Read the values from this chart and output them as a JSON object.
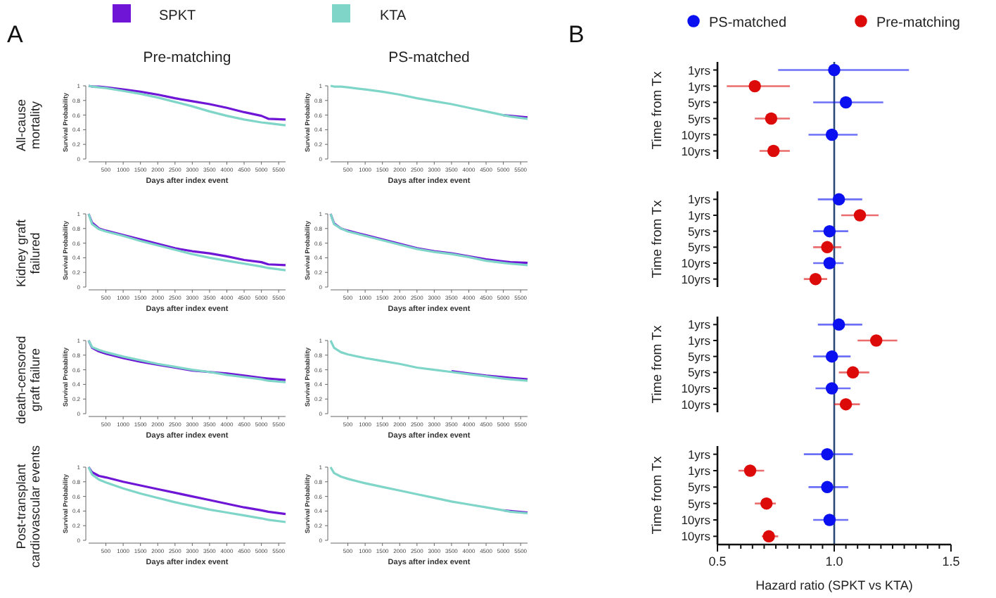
{
  "chart_data": [
    {
      "type": "line",
      "title": "Pre-matching",
      "annotations": [
        "A",
        "All-cause\nmortality"
      ],
      "xlabel": "Days after index event",
      "ylabel": "Survival Probability",
      "legend": "top",
      "xlim": [
        0,
        5700
      ],
      "xticks": [
        500,
        1000,
        1500,
        2000,
        2500,
        3000,
        3500,
        4000,
        4500,
        5000,
        5500
      ],
      "ylim": [
        0,
        1
      ],
      "yticks": [
        0,
        0.2,
        0.4,
        0.6,
        0.8,
        1
      ],
      "x": [
        0,
        100,
        300,
        500,
        1000,
        1500,
        2000,
        2500,
        3000,
        3500,
        4000,
        4500,
        5000,
        5200,
        5700
      ],
      "series": [
        {
          "name": "SPKT",
          "color": "#6f16d6",
          "values": [
            1,
            0.99,
            0.99,
            0.98,
            0.95,
            0.92,
            0.88,
            0.83,
            0.79,
            0.75,
            0.7,
            0.64,
            0.59,
            0.55,
            0.54
          ]
        },
        {
          "name": "KTA",
          "color": "#7fd6c8",
          "values": [
            1,
            0.99,
            0.98,
            0.97,
            0.93,
            0.89,
            0.84,
            0.78,
            0.72,
            0.65,
            0.59,
            0.54,
            0.5,
            0.49,
            0.46
          ]
        }
      ]
    },
    {
      "type": "line",
      "title": "PS-matched",
      "xlabel": "Days after index event",
      "ylabel": "Survival Probability",
      "xlim": [
        0,
        5700
      ],
      "xticks": [
        500,
        1000,
        1500,
        2000,
        2500,
        3000,
        3500,
        4000,
        4500,
        5000,
        5500
      ],
      "ylim": [
        0,
        1
      ],
      "yticks": [
        0,
        0.2,
        0.4,
        0.6,
        0.8,
        1
      ],
      "x": [
        0,
        100,
        300,
        500,
        1000,
        1500,
        2000,
        2500,
        3000,
        3500,
        4000,
        4500,
        5000,
        5200,
        5700
      ],
      "series": [
        {
          "color": "#6f16d6",
          "values": [
            null,
            null,
            null,
            null,
            null,
            null,
            null,
            null,
            null,
            null,
            null,
            null,
            0.6,
            0.59,
            0.57
          ]
        },
        {
          "color": "#7fd6c8",
          "values": [
            1,
            0.99,
            0.99,
            0.98,
            0.95,
            0.92,
            0.88,
            0.83,
            0.79,
            0.75,
            0.7,
            0.65,
            0.6,
            0.58,
            0.55
          ]
        }
      ]
    },
    {
      "type": "line",
      "annotations": [
        "Kidney graft\nfailured"
      ],
      "xlabel": "Days after index event",
      "ylabel": "Survival Probability",
      "xlim": [
        0,
        5700
      ],
      "xticks": [
        500,
        1000,
        1500,
        2000,
        2500,
        3000,
        3500,
        4000,
        4500,
        5000,
        5500
      ],
      "ylim": [
        0,
        1
      ],
      "yticks": [
        0,
        0.2,
        0.4,
        0.6,
        0.8,
        1
      ],
      "x": [
        0,
        100,
        300,
        500,
        1000,
        1500,
        2000,
        2500,
        3000,
        3500,
        4000,
        4500,
        5000,
        5200,
        5700
      ],
      "series": [
        {
          "color": "#6f16d6",
          "values": [
            1,
            0.88,
            0.8,
            0.77,
            0.71,
            0.65,
            0.59,
            0.53,
            0.49,
            0.46,
            0.42,
            0.37,
            0.34,
            0.31,
            0.3
          ]
        },
        {
          "color": "#7fd6c8",
          "values": [
            1,
            0.86,
            0.79,
            0.76,
            0.7,
            0.63,
            0.57,
            0.51,
            0.45,
            0.4,
            0.36,
            0.32,
            0.28,
            0.26,
            0.23
          ]
        }
      ]
    },
    {
      "type": "line",
      "xlabel": "Days after index event",
      "ylabel": "Survival Probability",
      "xlim": [
        0,
        5700
      ],
      "xticks": [
        500,
        1000,
        1500,
        2000,
        2500,
        3000,
        3500,
        4000,
        4500,
        5000,
        5500
      ],
      "ylim": [
        0,
        1
      ],
      "yticks": [
        0,
        0.2,
        0.4,
        0.6,
        0.8,
        1
      ],
      "x": [
        0,
        100,
        300,
        500,
        1000,
        1500,
        2000,
        2500,
        3000,
        3500,
        4000,
        4500,
        5000,
        5200,
        5700
      ],
      "series": [
        {
          "color": "#6f16d6",
          "values": [
            1,
            0.87,
            0.8,
            0.77,
            0.71,
            0.65,
            0.59,
            0.53,
            0.49,
            0.46,
            0.42,
            0.38,
            0.35,
            0.34,
            0.33
          ]
        },
        {
          "color": "#7fd6c8",
          "values": [
            1,
            0.86,
            0.8,
            0.76,
            0.7,
            0.64,
            0.58,
            0.52,
            0.48,
            0.45,
            0.41,
            0.36,
            0.33,
            0.32,
            0.3
          ]
        }
      ]
    },
    {
      "type": "line",
      "annotations": [
        "death-censored\ngraft failure"
      ],
      "xlabel": "Days after index event",
      "ylabel": "Survival Probability",
      "xlim": [
        0,
        5700
      ],
      "xticks": [
        500,
        1000,
        1500,
        2000,
        2500,
        3000,
        3500,
        4000,
        4500,
        5000,
        5500
      ],
      "ylim": [
        0,
        1
      ],
      "yticks": [
        0,
        0.2,
        0.4,
        0.6,
        0.8,
        1
      ],
      "x": [
        0,
        100,
        300,
        500,
        1000,
        1500,
        2000,
        2500,
        3000,
        3500,
        4000,
        4500,
        5000,
        5200,
        5700
      ],
      "series": [
        {
          "color": "#6f16d6",
          "values": [
            1,
            0.9,
            0.85,
            0.82,
            0.76,
            0.71,
            0.67,
            0.63,
            0.59,
            0.57,
            0.55,
            0.52,
            0.49,
            0.48,
            0.46
          ]
        },
        {
          "color": "#7fd6c8",
          "values": [
            1,
            0.91,
            0.87,
            0.84,
            0.78,
            0.73,
            0.68,
            0.64,
            0.6,
            0.57,
            0.53,
            0.5,
            0.47,
            0.45,
            0.43
          ]
        }
      ]
    },
    {
      "type": "line",
      "xlabel": "Days after index event",
      "ylabel": "Survival Probability",
      "xlim": [
        0,
        5700
      ],
      "xticks": [
        500,
        1000,
        1500,
        2000,
        2500,
        3000,
        3500,
        4000,
        4500,
        5000,
        5500
      ],
      "ylim": [
        0,
        1
      ],
      "yticks": [
        0,
        0.2,
        0.4,
        0.6,
        0.8,
        1
      ],
      "x": [
        0,
        100,
        300,
        500,
        1000,
        1500,
        2000,
        2500,
        3000,
        3500,
        4000,
        4500,
        5000,
        5200,
        5700
      ],
      "series": [
        {
          "color": "#6f16d6",
          "values": [
            null,
            null,
            null,
            null,
            null,
            null,
            null,
            null,
            null,
            0.58,
            0.55,
            0.52,
            0.5,
            0.49,
            0.47
          ]
        },
        {
          "color": "#7fd6c8",
          "values": [
            1,
            0.9,
            0.84,
            0.81,
            0.76,
            0.72,
            0.68,
            0.63,
            0.6,
            0.57,
            0.54,
            0.51,
            0.48,
            0.47,
            0.45
          ]
        }
      ]
    },
    {
      "type": "line",
      "annotations": [
        "Post-transplant\ncardiovascular events"
      ],
      "xlabel": "Days after index event",
      "ylabel": "Survival Probability",
      "xlim": [
        0,
        5700
      ],
      "xticks": [
        500,
        1000,
        1500,
        2000,
        2500,
        3000,
        3500,
        4000,
        4500,
        5000,
        5500
      ],
      "ylim": [
        0,
        1
      ],
      "yticks": [
        0,
        0.2,
        0.4,
        0.6,
        0.8,
        1
      ],
      "x": [
        0,
        100,
        300,
        500,
        1000,
        1500,
        2000,
        2500,
        3000,
        3500,
        4000,
        4500,
        5000,
        5200,
        5700
      ],
      "series": [
        {
          "color": "#6f16d6",
          "values": [
            1,
            0.93,
            0.88,
            0.86,
            0.8,
            0.75,
            0.7,
            0.65,
            0.6,
            0.55,
            0.5,
            0.45,
            0.41,
            0.39,
            0.36
          ]
        },
        {
          "color": "#7fd6c8",
          "values": [
            1,
            0.9,
            0.83,
            0.79,
            0.71,
            0.64,
            0.58,
            0.52,
            0.47,
            0.42,
            0.38,
            0.34,
            0.3,
            0.28,
            0.25
          ]
        }
      ]
    },
    {
      "type": "line",
      "xlabel": "Days after index event",
      "ylabel": "Survival Probability",
      "xlim": [
        0,
        5700
      ],
      "xticks": [
        500,
        1000,
        1500,
        2000,
        2500,
        3000,
        3500,
        4000,
        4500,
        5000,
        5500
      ],
      "ylim": [
        0,
        1
      ],
      "yticks": [
        0,
        0.2,
        0.4,
        0.6,
        0.8,
        1
      ],
      "x": [
        0,
        100,
        300,
        500,
        1000,
        1500,
        2000,
        2500,
        3000,
        3500,
        4000,
        4500,
        5000,
        5200,
        5700
      ],
      "series": [
        {
          "color": "#6f16d6",
          "values": [
            null,
            null,
            null,
            null,
            null,
            null,
            null,
            null,
            null,
            null,
            null,
            null,
            0.41,
            0.4,
            0.38
          ]
        },
        {
          "color": "#7fd6c8",
          "values": [
            1,
            0.92,
            0.87,
            0.84,
            0.78,
            0.73,
            0.68,
            0.63,
            0.58,
            0.53,
            0.49,
            0.45,
            0.41,
            0.39,
            0.37
          ]
        }
      ]
    },
    {
      "type": "scatter",
      "orientation": "horizontal",
      "annotations": [
        "B"
      ],
      "ylabel": "Time from Tx",
      "legend": "top",
      "marker": "circle",
      "tick_labels": "y",
      "categories": [
        "1yrs",
        "1yrs",
        "5yrs",
        "5yrs",
        "10yrs",
        "10yrs"
      ],
      "xlim": [
        0.5,
        1.5
      ],
      "ref_lines": [
        {
          "axis": "x",
          "value": 1,
          "color": "#2b4a78"
        }
      ],
      "series": [
        {
          "name": "PS-matched",
          "color": "#0a10f0",
          "values": [
            1.0,
            null,
            1.05,
            null,
            0.99,
            null
          ],
          "errors": [
            [
              0.76,
              1.32
            ],
            null,
            [
              0.91,
              1.21
            ],
            null,
            [
              0.89,
              1.1
            ],
            null
          ]
        },
        {
          "name": "Pre-matching",
          "color": "#dd0a0a",
          "values": [
            null,
            0.66,
            null,
            0.73,
            null,
            0.74
          ],
          "errors": [
            null,
            [
              0.54,
              0.81
            ],
            null,
            [
              0.66,
              0.81
            ],
            null,
            [
              0.68,
              0.81
            ]
          ]
        }
      ]
    },
    {
      "type": "scatter",
      "orientation": "horizontal",
      "ylabel": "Time from Tx",
      "marker": "circle",
      "tick_labels": "y",
      "categories": [
        "1yrs",
        "1yrs",
        "5yrs",
        "5yrs",
        "10yrs",
        "10yrs"
      ],
      "xlim": [
        0.5,
        1.5
      ],
      "ref_lines": [
        {
          "axis": "x",
          "value": 1,
          "color": "#2b4a78"
        }
      ],
      "series": [
        {
          "color": "#0a10f0",
          "values": [
            1.02,
            null,
            0.98,
            null,
            0.98,
            null
          ],
          "errors": [
            [
              0.93,
              1.12
            ],
            null,
            [
              0.91,
              1.06
            ],
            null,
            [
              0.91,
              1.04
            ],
            null
          ]
        },
        {
          "color": "#dd0a0a",
          "values": [
            null,
            1.11,
            null,
            0.97,
            null,
            0.92
          ],
          "errors": [
            null,
            [
              1.03,
              1.19
            ],
            null,
            [
              0.91,
              1.03
            ],
            null,
            [
              0.87,
              0.97
            ]
          ]
        }
      ]
    },
    {
      "type": "scatter",
      "orientation": "horizontal",
      "ylabel": "Time from Tx",
      "marker": "circle",
      "tick_labels": "y",
      "categories": [
        "1yrs",
        "1yrs",
        "5yrs",
        "5yrs",
        "10yrs",
        "10yrs"
      ],
      "xlim": [
        0.5,
        1.5
      ],
      "ref_lines": [
        {
          "axis": "x",
          "value": 1,
          "color": "#2b4a78"
        }
      ],
      "series": [
        {
          "color": "#0a10f0",
          "values": [
            1.02,
            null,
            0.99,
            null,
            0.99,
            null
          ],
          "errors": [
            [
              0.93,
              1.12
            ],
            null,
            [
              0.91,
              1.07
            ],
            null,
            [
              0.92,
              1.07
            ],
            null
          ]
        },
        {
          "color": "#dd0a0a",
          "values": [
            null,
            1.18,
            null,
            1.08,
            null,
            1.05
          ],
          "errors": [
            null,
            [
              1.1,
              1.27
            ],
            null,
            [
              1.02,
              1.15
            ],
            null,
            [
              1.0,
              1.11
            ]
          ]
        }
      ]
    },
    {
      "type": "scatter",
      "orientation": "horizontal",
      "ylabel": "Time from Tx",
      "xlabel": "Hazard ratio (SPKT vs KTA)",
      "marker": "circle",
      "categories": [
        "1yrs",
        "1yrs",
        "5yrs",
        "5yrs",
        "10yrs",
        "10yrs"
      ],
      "xlim": [
        0.5,
        1.5
      ],
      "xticks": [
        0.5,
        {
          "value": 0.55,
          "label": null
        },
        {
          "value": 0.6,
          "label": null
        },
        {
          "value": 0.65,
          "label": null
        },
        {
          "value": 0.7,
          "label": null
        },
        {
          "value": 0.75,
          "label": null
        },
        {
          "value": 0.8,
          "label": null
        },
        {
          "value": 0.85,
          "label": null
        },
        {
          "value": 0.9,
          "label": null
        },
        {
          "value": 0.95,
          "label": null
        },
        {
          "value": 1,
          "label": "1.0"
        },
        {
          "value": 1.05,
          "label": null
        },
        {
          "value": 1.1,
          "label": null
        },
        {
          "value": 1.15,
          "label": null
        },
        {
          "value": 1.2,
          "label": null
        },
        {
          "value": 1.25,
          "label": null
        },
        {
          "value": 1.3,
          "label": null
        },
        {
          "value": 1.35,
          "label": null
        },
        {
          "value": 1.4,
          "label": null
        },
        {
          "value": 1.45,
          "label": null
        },
        1.5
      ],
      "ref_lines": [
        {
          "axis": "x",
          "value": 1,
          "color": "#2b4a78"
        }
      ],
      "series": [
        {
          "color": "#0a10f0",
          "values": [
            0.97,
            null,
            0.97,
            null,
            0.98,
            null
          ],
          "errors": [
            [
              0.87,
              1.08
            ],
            null,
            [
              0.89,
              1.06
            ],
            null,
            [
              0.91,
              1.06
            ],
            null
          ]
        },
        {
          "color": "#dd0a0a",
          "values": [
            null,
            0.64,
            null,
            0.71,
            null,
            0.72
          ],
          "errors": [
            null,
            [
              0.59,
              0.7
            ],
            null,
            [
              0.66,
              0.75
            ],
            null,
            [
              0.69,
              0.76
            ]
          ]
        }
      ]
    }
  ]
}
